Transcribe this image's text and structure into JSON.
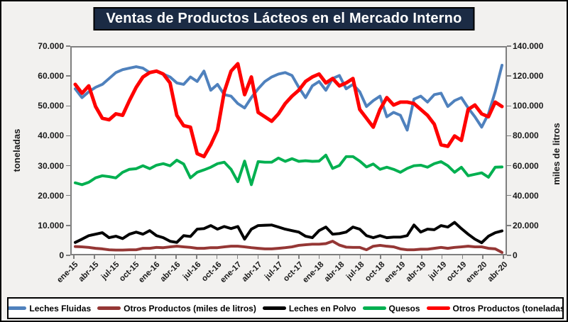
{
  "title": "Ventas de Productos Lácteos en el Mercado Interno",
  "chart_data": {
    "type": "line",
    "title": "Ventas de Productos Lácteos en el Mercado Interno",
    "x_points": 64,
    "x_tick_interval": 3,
    "x_tick_labels": [
      "ene-15",
      "abr-15",
      "jul-15",
      "oct-15",
      "ene-16",
      "abr-16",
      "jul-16",
      "oct-16",
      "ene-17",
      "abr-17",
      "jul-17",
      "oct-17",
      "ene-18",
      "abr-18",
      "jul-18",
      "oct-18",
      "ene-19",
      "abr-19",
      "jul-19",
      "oct-19",
      "ene-20",
      "abr-20"
    ],
    "grid": false,
    "legend_position": "bottom",
    "left_axis": {
      "title": "toneladas",
      "min": 0,
      "max": 70000,
      "tick_step": 10000,
      "tick_labels": [
        "0",
        "10.000",
        "20.000",
        "30.000",
        "40.000",
        "50.000",
        "60.000",
        "70.000"
      ]
    },
    "right_axis": {
      "title": "miles de litros",
      "min": 0,
      "max": 140000,
      "tick_step": 20000,
      "tick_labels": [
        "0",
        "20.000",
        "40.000",
        "60.000",
        "80.000",
        "100.000",
        "120.000",
        "140.000"
      ]
    },
    "series": [
      {
        "name": "Leches Fluidas",
        "axis": "right",
        "color": "#4F81BD",
        "width": 4,
        "values": [
          112000,
          106000,
          110000,
          113000,
          115000,
          119000,
          123000,
          125000,
          126000,
          127000,
          126000,
          123000,
          124000,
          122000,
          120000,
          116000,
          115000,
          120000,
          117000,
          124000,
          111000,
          115000,
          108000,
          107000,
          102000,
          99000,
          106000,
          112000,
          117000,
          120000,
          122000,
          123000,
          121000,
          113000,
          106000,
          114000,
          117000,
          111000,
          119000,
          121000,
          112000,
          115000,
          110000,
          100000,
          104000,
          107000,
          93000,
          96000,
          94000,
          84000,
          105000,
          107000,
          103000,
          108000,
          109000,
          100000,
          104000,
          106000,
          99000,
          93000,
          86000,
          95000,
          110000,
          128000
        ]
      },
      {
        "name": "Otros Productos (miles de litros)",
        "axis": "right",
        "color": "#953735",
        "width": 4,
        "values": [
          5000,
          4800,
          4400,
          3800,
          3400,
          2800,
          2600,
          2600,
          2800,
          2800,
          3800,
          3800,
          4400,
          4200,
          4800,
          5200,
          4800,
          4400,
          3800,
          3800,
          4200,
          4200,
          4800,
          5200,
          5200,
          4800,
          4200,
          3800,
          3400,
          3400,
          3800,
          4200,
          4800,
          5800,
          6200,
          6600,
          6600,
          7000,
          8600,
          6000,
          4600,
          4400,
          4400,
          2800,
          5200,
          5800,
          5200,
          4800,
          3400,
          2800,
          2800,
          3200,
          3200,
          3800,
          4400,
          3800,
          4400,
          4800,
          5200,
          4800,
          4800,
          3800,
          3400,
          1000
        ]
      },
      {
        "name": "Leches en Polvo",
        "axis": "left",
        "color": "#000000",
        "width": 4,
        "values": [
          3900,
          5000,
          6200,
          6700,
          7200,
          5500,
          6000,
          5200,
          6700,
          7400,
          6700,
          7900,
          6200,
          5500,
          4300,
          3900,
          6200,
          5900,
          8400,
          8600,
          9600,
          8400,
          9300,
          8600,
          9300,
          5000,
          8400,
          9600,
          9700,
          9800,
          9100,
          8400,
          7900,
          7400,
          6000,
          5500,
          7900,
          9100,
          6700,
          6900,
          7400,
          9100,
          8400,
          6200,
          5500,
          6200,
          5500,
          5700,
          5700,
          6200,
          9800,
          7400,
          8400,
          8200,
          9600,
          9100,
          10700,
          8600,
          6700,
          5000,
          3800,
          6000,
          7200,
          7800
        ]
      },
      {
        "name": "Quesos",
        "axis": "left",
        "color": "#00B050",
        "width": 4,
        "values": [
          24100,
          23500,
          24300,
          25800,
          26500,
          26200,
          25800,
          27700,
          28700,
          28900,
          29900,
          28900,
          30100,
          30600,
          29900,
          31800,
          30500,
          25800,
          27700,
          28500,
          29400,
          30600,
          31100,
          28700,
          24500,
          31500,
          23500,
          31300,
          31100,
          31100,
          32500,
          31400,
          32300,
          31400,
          31600,
          31400,
          31500,
          33500,
          29000,
          30000,
          33000,
          33000,
          31500,
          29500,
          30500,
          28700,
          29400,
          28700,
          27700,
          29000,
          29900,
          30100,
          29400,
          30600,
          31300,
          29900,
          27700,
          29400,
          26500,
          27000,
          27500,
          26000,
          29400,
          29500
        ]
      },
      {
        "name": "Otros Productos (toneladas)",
        "axis": "left",
        "color": "#FF0000",
        "width": 5,
        "values": [
          57500,
          54500,
          57000,
          50000,
          46000,
          45500,
          47500,
          47000,
          52000,
          56500,
          60000,
          61500,
          62000,
          61000,
          58000,
          47000,
          43500,
          43000,
          34000,
          33000,
          37000,
          42000,
          55000,
          62000,
          64500,
          54000,
          60000,
          48000,
          46500,
          45000,
          47500,
          51000,
          53500,
          55500,
          58500,
          60000,
          61000,
          58000,
          59500,
          57000,
          58000,
          59500,
          49000,
          46000,
          43000,
          49000,
          53000,
          50500,
          51500,
          51500,
          51000,
          49000,
          47000,
          44000,
          37000,
          36500,
          40000,
          38500,
          49000,
          50500,
          47500,
          46500,
          51500,
          50000
        ]
      }
    ]
  }
}
